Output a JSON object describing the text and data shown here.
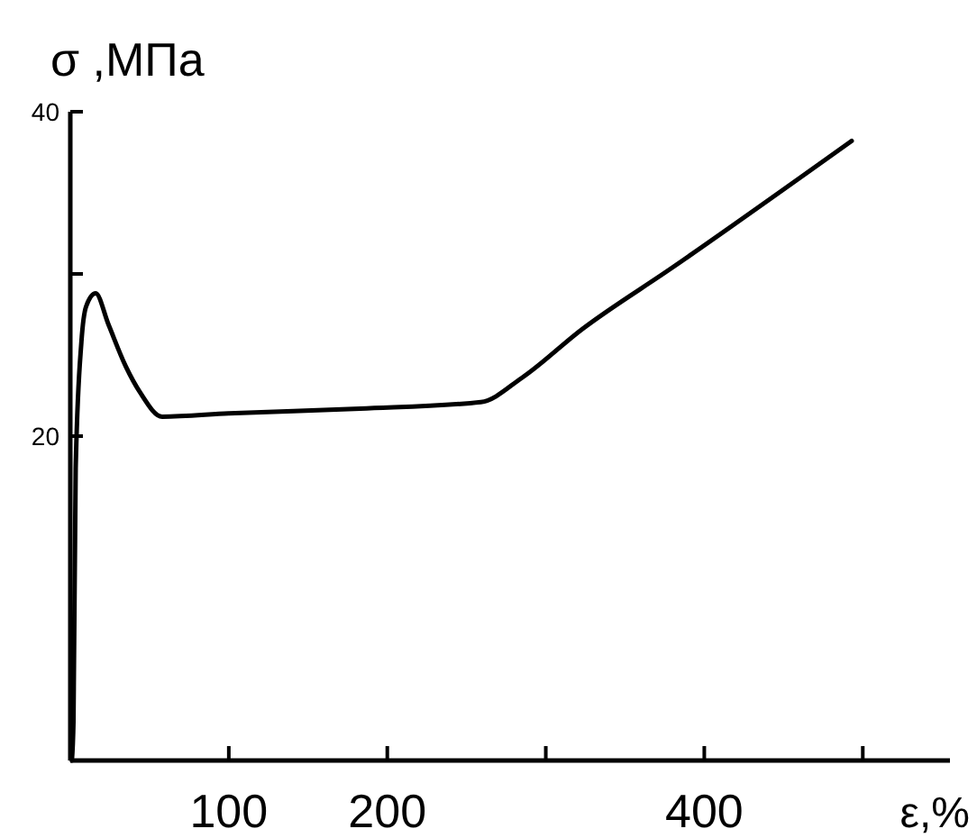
{
  "chart_data": {
    "type": "line",
    "xlabel": "ε,%",
    "ylabel": "σ ,МПа",
    "xlim": [
      0,
      555
    ],
    "ylim": [
      0,
      40
    ],
    "xticks": [
      100,
      200,
      {
        "value": 300,
        "label": null
      },
      400,
      {
        "value": 500,
        "label": null
      }
    ],
    "yticks": [
      20,
      {
        "value": 30,
        "label": null
      },
      40
    ],
    "grid": false,
    "marker": "none",
    "line_style": "solid",
    "series": [
      {
        "color": "#000000",
        "x": [
          1,
          2,
          3.4,
          7,
          10,
          16,
          24,
          35,
          44,
          58,
          100,
          183,
          259,
          285,
          323,
          380,
          493
        ],
        "values": [
          0,
          2.4,
          18,
          25.8,
          28,
          28.8,
          26.9,
          24.3,
          22.7,
          21.2,
          21.4,
          21.7,
          22.1,
          23.6,
          26.6,
          30.4,
          38.2
        ]
      }
    ]
  }
}
